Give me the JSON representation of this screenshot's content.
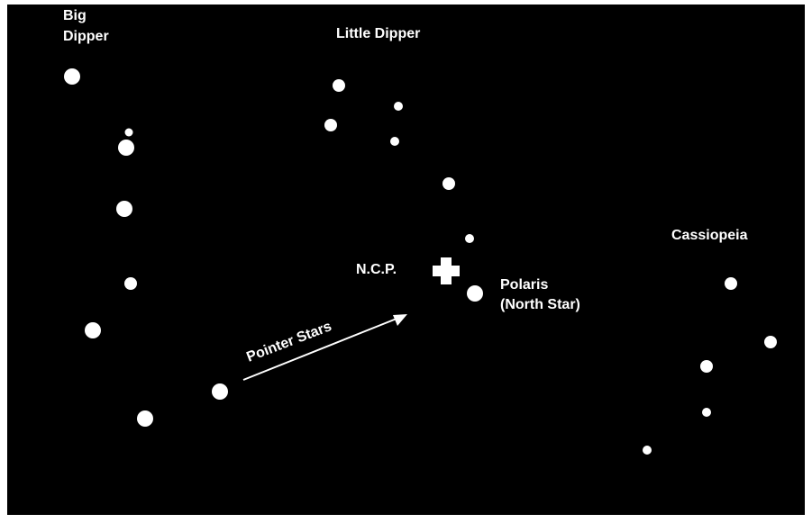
{
  "labels": {
    "big_dipper": [
      "Big",
      "Dipper"
    ],
    "little_dipper": "Little Dipper",
    "ncp": "N.C.P.",
    "polaris": [
      "Polaris",
      "(North Star)"
    ],
    "pointer_stars": "Pointer Stars",
    "cassiopeia": "Cassiopeia"
  }
}
